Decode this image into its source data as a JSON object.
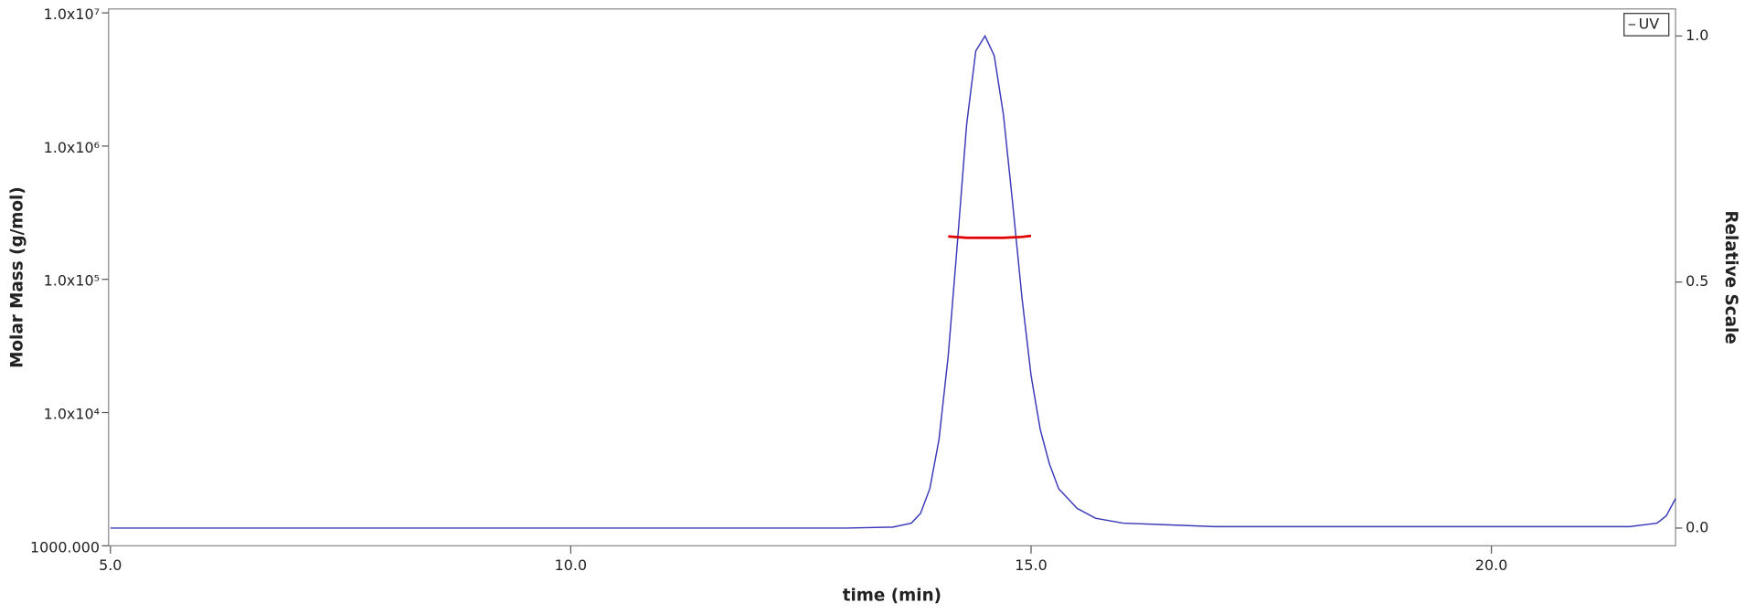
{
  "chart_data": {
    "type": "line",
    "xlabel": "time (min)",
    "ylabel": "Molar Mass (g/mol)",
    "y2label": "Relative Scale",
    "xlim": [
      4.98,
      22.0
    ],
    "xticks": [
      {
        "value": 5,
        "label": "5.0"
      },
      {
        "value": 10,
        "label": "10.0"
      },
      {
        "value": 15,
        "label": "15.0"
      },
      {
        "value": 20,
        "label": "20.0"
      }
    ],
    "ylog": true,
    "ylim": [
      1000,
      10700000
    ],
    "yticks": [
      {
        "value": 1000,
        "label": "1000.000"
      },
      {
        "value": 10000,
        "label": "1.0x10⁴"
      },
      {
        "value": 100000,
        "label": "1.0x10⁵"
      },
      {
        "value": 1000000,
        "label": "1.0x10⁶"
      },
      {
        "value": 10000000,
        "label": "1.0x10⁷"
      }
    ],
    "y2lim": [
      -0.036,
      1.055
    ],
    "y2ticks": [
      {
        "value": 0,
        "label": "0.0"
      },
      {
        "value": 0.5,
        "label": "0.5"
      },
      {
        "value": 1,
        "label": "1.0"
      }
    ],
    "legend": "upper right",
    "series": [
      {
        "name": "UV",
        "color": "#3a3ab8",
        "axis": "y2",
        "x": [
          5.0,
          13.0,
          13.5,
          13.7,
          13.8,
          13.9,
          14.0,
          14.1,
          14.2,
          14.3,
          14.4,
          14.5,
          14.6,
          14.7,
          14.8,
          14.9,
          15.0,
          15.1,
          15.2,
          15.3,
          15.5,
          15.7,
          16.0,
          17.0,
          21.5,
          21.8,
          21.9,
          22.0
        ],
        "values": [
          0.0,
          0.0,
          0.002,
          0.01,
          0.03,
          0.08,
          0.18,
          0.35,
          0.58,
          0.82,
          0.97,
          1.0,
          0.96,
          0.84,
          0.66,
          0.47,
          0.31,
          0.2,
          0.13,
          0.08,
          0.04,
          0.02,
          0.01,
          0.003,
          0.003,
          0.01,
          0.025,
          0.06
        ]
      },
      {
        "color": "#e00000",
        "x": [
          14.1,
          14.3,
          14.5,
          14.7,
          14.9,
          15.0
        ],
        "values": [
          210000,
          205000,
          205000,
          205000,
          208000,
          212000
        ]
      }
    ]
  }
}
